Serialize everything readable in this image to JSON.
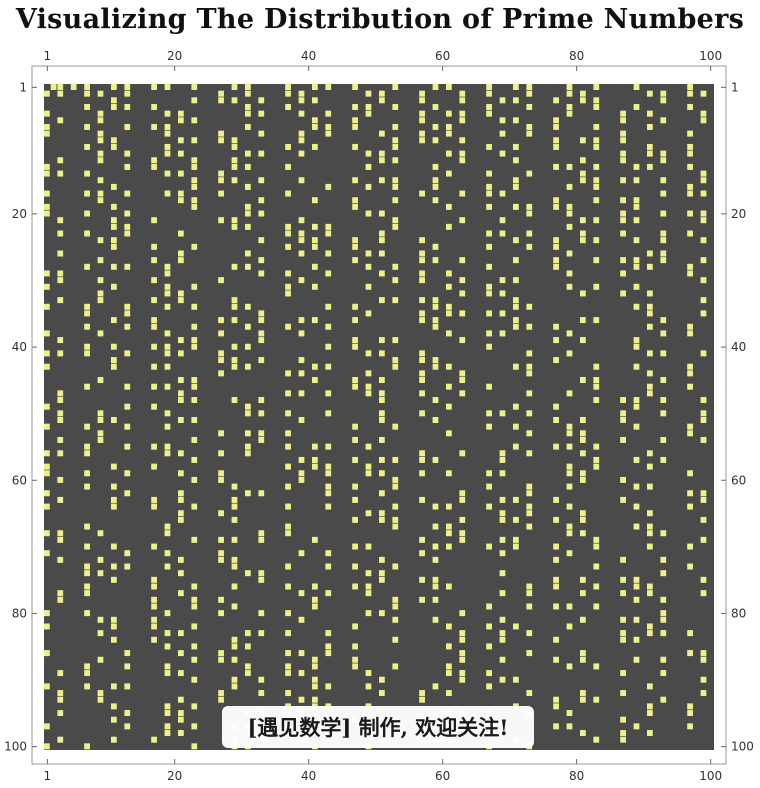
{
  "title": "Visualizing The Distribution of Prime Numbers",
  "watermark": "[遇见数学] 制作, 欢迎关注!",
  "colors": {
    "background": "#4a4a4a",
    "prime": "#eef08a",
    "frame": "#9a9a9a"
  },
  "chart_data": {
    "type": "heatmap",
    "title": "Visualizing The Distribution of Prime Numbers",
    "xlabel": "",
    "ylabel": "",
    "grid": false,
    "rows": 100,
    "columns": 100,
    "xlim": [
      1,
      100
    ],
    "ylim": [
      1,
      100
    ],
    "x_tick_labels": [
      "1",
      "20",
      "40",
      "60",
      "80",
      "100"
    ],
    "y_tick_labels": [
      "1",
      "20",
      "40",
      "60",
      "80",
      "100"
    ],
    "cell_rule": "cell (row r, column c) is lit when n = (r - 1) * 100 + c is prime",
    "value_range": [
      1,
      10000
    ]
  }
}
